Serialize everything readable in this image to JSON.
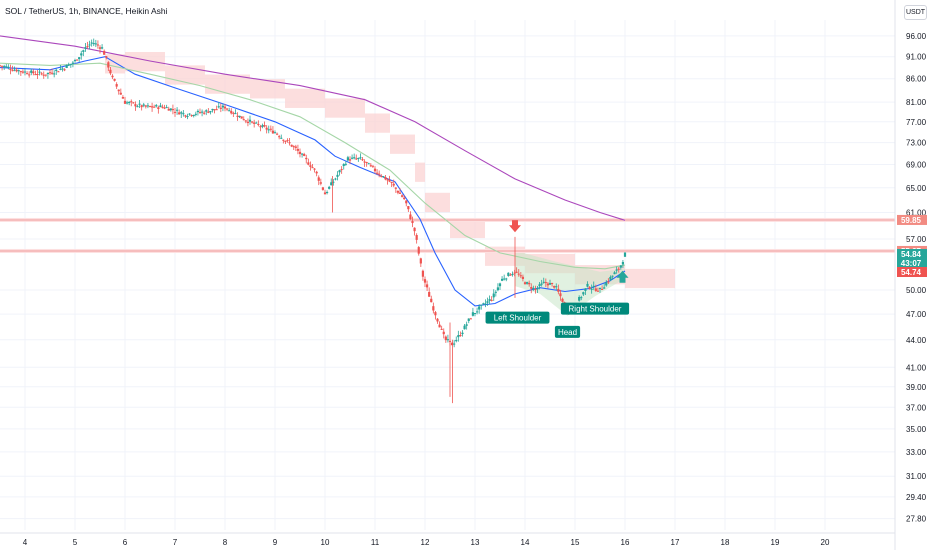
{
  "header": {
    "title": "SOL / TetherUS, 1h, BINANCE, Heikin Ashi",
    "currency_button": "USDT"
  },
  "colors": {
    "up": "#26a69a",
    "down": "#ef5350",
    "ema_fast": "#2962ff",
    "ema_mid": "#a5d6a7",
    "ema_slow": "#ab47bc",
    "resistance": "#ef9a9a",
    "cloud": "#fbd3d3",
    "pattern_fill": "#c8e6c9"
  },
  "chart_data": {
    "type": "candlestick",
    "title": "SOL / TetherUS, 1h, BINANCE, Heikin Ashi",
    "y_axis": {
      "scale": "log",
      "ylim": [
        27.0,
        100.0
      ],
      "tick_labels": [
        "96.00",
        "91.00",
        "86.00",
        "81.00",
        "77.00",
        "73.00",
        "69.00",
        "65.00",
        "61.00",
        "57.00",
        "50.00",
        "47.00",
        "44.00",
        "41.00",
        "39.00",
        "37.00",
        "35.00",
        "33.00",
        "31.00",
        "29.40",
        "27.80"
      ]
    },
    "x_axis": {
      "tick_labels": [
        "4",
        "5",
        "6",
        "7",
        "8",
        "9",
        "10",
        "11",
        "12",
        "13",
        "14",
        "15",
        "16",
        "17",
        "18",
        "19",
        "20"
      ],
      "day_range": [
        3.5,
        21.4
      ]
    },
    "price_tags": [
      {
        "value": "59.85",
        "kind": "resistance"
      },
      {
        "value": "55.27",
        "kind": "resistance"
      },
      {
        "value": "54.84",
        "kind": "last"
      },
      {
        "value": "43:07",
        "kind": "countdown"
      },
      {
        "value": "54.74",
        "kind": "level"
      }
    ],
    "horizontal_lines": [
      {
        "value": 59.85,
        "color": "#ef9a9a"
      },
      {
        "value": 55.27,
        "color": "#ef9a9a"
      }
    ],
    "annotations": [
      {
        "label": "Left Shoulder",
        "day": 13.85,
        "value": 47.3
      },
      {
        "label": "Head",
        "day": 14.85,
        "value": 45.6
      },
      {
        "label": "Right Shoulder",
        "day": 15.4,
        "value": 48.4
      }
    ],
    "arrows": [
      {
        "direction": "down",
        "day": 13.8,
        "value": 58.6,
        "color": "#ef5350"
      },
      {
        "direction": "up",
        "day": 15.95,
        "value": 52.0,
        "color": "#26a69a"
      }
    ],
    "candle_path": [
      [
        3.5,
        89
      ],
      [
        4.0,
        87.5
      ],
      [
        4.4,
        87
      ],
      [
        4.8,
        88.5
      ],
      [
        5.0,
        90
      ],
      [
        5.2,
        93
      ],
      [
        5.35,
        94.5
      ],
      [
        5.55,
        93
      ],
      [
        5.75,
        86
      ],
      [
        6.0,
        81
      ],
      [
        6.4,
        80
      ],
      [
        6.8,
        80
      ],
      [
        7.2,
        78.5
      ],
      [
        7.6,
        79
      ],
      [
        8.0,
        80
      ],
      [
        8.3,
        78
      ],
      [
        8.6,
        76.5
      ],
      [
        9.0,
        75
      ],
      [
        9.4,
        72
      ],
      [
        9.8,
        68
      ],
      [
        10.0,
        64
      ],
      [
        10.2,
        66.5
      ],
      [
        10.45,
        70
      ],
      [
        10.7,
        70
      ],
      [
        11.0,
        68
      ],
      [
        11.3,
        66
      ],
      [
        11.6,
        63
      ],
      [
        11.8,
        58
      ],
      [
        11.95,
        52
      ],
      [
        12.15,
        48
      ],
      [
        12.4,
        44
      ],
      [
        12.55,
        43.5
      ],
      [
        12.75,
        45
      ],
      [
        12.95,
        47
      ],
      [
        13.15,
        48
      ],
      [
        13.35,
        49
      ],
      [
        13.55,
        51.5
      ],
      [
        13.8,
        52.5
      ],
      [
        14.0,
        51
      ],
      [
        14.2,
        50
      ],
      [
        14.4,
        51
      ],
      [
        14.6,
        50.5
      ],
      [
        14.85,
        47.5
      ],
      [
        15.05,
        48.5
      ],
      [
        15.25,
        50.5
      ],
      [
        15.5,
        50
      ],
      [
        15.7,
        51.5
      ],
      [
        15.9,
        53
      ],
      [
        16.0,
        54.8
      ]
    ],
    "series": [
      {
        "name": "",
        "role": "ema_fast",
        "points": [
          [
            3.5,
            88.5
          ],
          [
            4.5,
            88
          ],
          [
            5.2,
            90
          ],
          [
            5.6,
            91
          ],
          [
            6.2,
            87
          ],
          [
            7.0,
            84
          ],
          [
            8.0,
            80.5
          ],
          [
            9.0,
            77
          ],
          [
            9.8,
            73.5
          ],
          [
            10.2,
            70.5
          ],
          [
            10.7,
            68.5
          ],
          [
            11.4,
            66
          ],
          [
            11.9,
            60
          ],
          [
            12.2,
            55
          ],
          [
            12.6,
            50
          ],
          [
            13.0,
            48
          ],
          [
            13.4,
            48.3
          ],
          [
            13.8,
            49.5
          ],
          [
            14.3,
            50.3
          ],
          [
            14.8,
            49.8
          ],
          [
            15.3,
            50.2
          ],
          [
            15.7,
            51.2
          ],
          [
            16.0,
            52.5
          ]
        ]
      },
      {
        "name": "",
        "role": "ema_mid",
        "points": [
          [
            3.5,
            89.5
          ],
          [
            4.5,
            89
          ],
          [
            5.5,
            89.5
          ],
          [
            6.5,
            87
          ],
          [
            7.5,
            84.5
          ],
          [
            8.5,
            81.5
          ],
          [
            9.5,
            78
          ],
          [
            10.4,
            73
          ],
          [
            11.3,
            68
          ],
          [
            12.0,
            62.5
          ],
          [
            12.8,
            57.5
          ],
          [
            13.5,
            55
          ],
          [
            14.3,
            53.8
          ],
          [
            15.0,
            53
          ],
          [
            15.6,
            52.8
          ],
          [
            16.0,
            53.3
          ]
        ]
      },
      {
        "name": "",
        "role": "ema_slow",
        "points": [
          [
            3.5,
            96
          ],
          [
            5.0,
            93.5
          ],
          [
            6.5,
            90
          ],
          [
            8.0,
            87
          ],
          [
            9.5,
            84.5
          ],
          [
            10.8,
            81.5
          ],
          [
            11.8,
            77
          ],
          [
            12.8,
            71.5
          ],
          [
            13.8,
            66.5
          ],
          [
            14.8,
            63
          ],
          [
            15.5,
            61
          ],
          [
            16.0,
            59.8
          ]
        ]
      }
    ],
    "cloud_levels": [
      [
        5.6,
        88.5
      ],
      [
        6.0,
        89
      ],
      [
        6.8,
        86
      ],
      [
        7.6,
        84
      ],
      [
        8.5,
        83
      ],
      [
        9.2,
        81
      ],
      [
        10.0,
        79
      ],
      [
        10.8,
        76
      ],
      [
        11.3,
        72
      ],
      [
        11.8,
        67
      ],
      [
        12.0,
        62
      ],
      [
        12.5,
        58
      ],
      [
        13.2,
        54
      ],
      [
        14.0,
        53
      ],
      [
        15.0,
        51.5
      ],
      [
        16.0,
        51
      ],
      [
        17.0,
        52
      ]
    ]
  }
}
